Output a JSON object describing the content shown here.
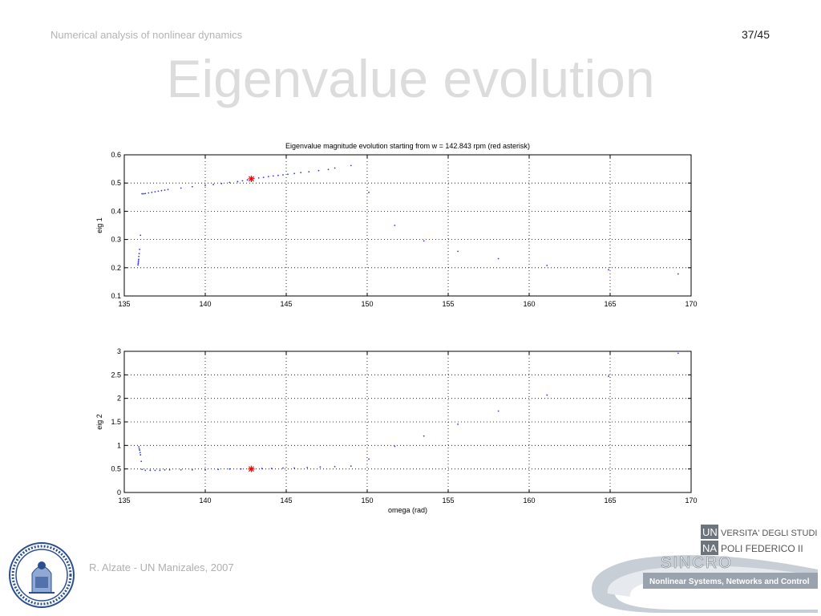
{
  "header": {
    "subtitle": "Numerical analysis of nonlinear dynamics",
    "page_number": "37/45",
    "title": "Eigenvalue evolution"
  },
  "footer": {
    "author": "R. Alzate - UN Manizales, 2007",
    "logo": {
      "line1": "VERSITA' DEGLI STUDI DI",
      "line2": "POLI FEDERICO II",
      "uni": "UNI",
      "na": "NA",
      "sincro": "SINCRO",
      "tagline": "Nonlinear Systems, Networks and Control",
      "seal_icon": "university-seal-icon"
    }
  },
  "colors": {
    "points": "#3333ff",
    "marker": "#ff0000",
    "grid": "#000000"
  },
  "chart_data": [
    {
      "type": "scatter",
      "title": "Eigenvalue magnitude evolution starting from w = 142.843 rpm (red asterisk)",
      "xlabel": "",
      "ylabel": "eig 1",
      "xlim": [
        135,
        170
      ],
      "ylim": [
        0.1,
        0.6
      ],
      "xticks": [
        "135",
        "140",
        "145",
        "150",
        "155",
        "160",
        "165",
        "170"
      ],
      "yticks": [
        "0.1",
        "0.2",
        "0.3",
        "0.4",
        "0.5",
        "0.6"
      ],
      "grid": true,
      "x": [
        135.85,
        135.86,
        135.87,
        135.88,
        135.89,
        135.9,
        135.92,
        135.95,
        136.0,
        136.1,
        136.2,
        136.3,
        136.5,
        136.7,
        136.9,
        137.1,
        137.3,
        137.5,
        137.7,
        138.5,
        139.2,
        140.0,
        140.5,
        141.0,
        141.5,
        142.0,
        142.3,
        142.6,
        143.0,
        143.3,
        143.6,
        143.9,
        144.2,
        144.5,
        144.8,
        145.1,
        145.5,
        145.9,
        146.4,
        147.0,
        147.6,
        148.0,
        149.0,
        150.1,
        151.7,
        153.5,
        155.6,
        158.1,
        161.1,
        164.9,
        169.2
      ],
      "y": [
        0.21,
        0.215,
        0.22,
        0.225,
        0.23,
        0.24,
        0.25,
        0.265,
        0.315,
        0.462,
        0.462,
        0.463,
        0.465,
        0.467,
        0.469,
        0.471,
        0.473,
        0.475,
        0.477,
        0.482,
        0.487,
        0.491,
        0.495,
        0.498,
        0.502,
        0.505,
        0.508,
        0.511,
        0.516,
        0.518,
        0.52,
        0.523,
        0.525,
        0.527,
        0.529,
        0.531,
        0.534,
        0.537,
        0.54,
        0.544,
        0.548,
        0.553,
        0.562,
        0.467,
        0.35,
        0.295,
        0.258,
        0.232,
        0.208,
        0.193,
        0.178
      ],
      "highlight": {
        "x": 142.843,
        "y": 0.515
      }
    },
    {
      "type": "scatter",
      "title": "",
      "xlabel": "omega (rad)",
      "ylabel": "eig 2",
      "xlim": [
        135,
        170
      ],
      "ylim": [
        0,
        3
      ],
      "xticks": [
        "135",
        "140",
        "145",
        "150",
        "155",
        "160",
        "165",
        "170"
      ],
      "yticks": [
        "0",
        "0.5",
        "1",
        "1.5",
        "2",
        "2.5",
        "3"
      ],
      "grid": true,
      "x": [
        135.9,
        135.92,
        135.95,
        135.98,
        136.0,
        136.05,
        136.1,
        136.3,
        136.6,
        136.9,
        137.2,
        137.5,
        137.8,
        138.5,
        139.2,
        140.0,
        140.8,
        141.5,
        142.2,
        142.9,
        143.5,
        144.1,
        144.8,
        145.5,
        146.3,
        147.1,
        148.0,
        149.0,
        150.1,
        151.7,
        153.5,
        155.6,
        158.1,
        161.1,
        164.9,
        169.2
      ],
      "y": [
        0.97,
        0.93,
        0.9,
        0.85,
        0.8,
        0.66,
        0.49,
        0.47,
        0.47,
        0.47,
        0.47,
        0.48,
        0.48,
        0.48,
        0.48,
        0.49,
        0.49,
        0.5,
        0.5,
        0.51,
        0.51,
        0.51,
        0.52,
        0.52,
        0.53,
        0.54,
        0.55,
        0.56,
        0.71,
        0.98,
        1.2,
        1.45,
        1.73,
        2.07,
        2.47,
        2.96
      ],
      "highlight": {
        "x": 142.843,
        "y": 0.5
      }
    }
  ]
}
